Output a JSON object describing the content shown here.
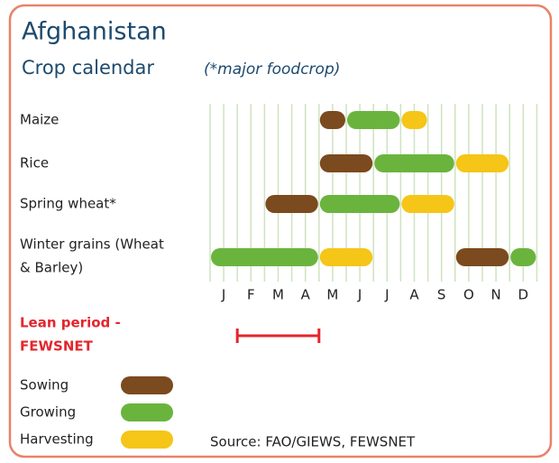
{
  "header": {
    "title": "Afghanistan",
    "subtitle": "Crop calendar",
    "note": "(*major foodcrop)"
  },
  "months": [
    "J",
    "F",
    "M",
    "A",
    "M",
    "J",
    "J",
    "A",
    "S",
    "O",
    "N",
    "D"
  ],
  "legend": [
    {
      "label": "Sowing",
      "color": "#7b4a1e"
    },
    {
      "label": "Growing",
      "color": "#6ab43e"
    },
    {
      "label": "Harvesting",
      "color": "#f5c518"
    }
  ],
  "crops": [
    {
      "label_lines": [
        "Maize"
      ],
      "phases": [
        {
          "phase": "Sowing",
          "start": 4,
          "end": 5
        },
        {
          "phase": "Growing",
          "start": 5,
          "end": 7
        },
        {
          "phase": "Harvesting",
          "start": 7,
          "end": 8
        }
      ]
    },
    {
      "label_lines": [
        "Rice"
      ],
      "phases": [
        {
          "phase": "Sowing",
          "start": 4,
          "end": 6
        },
        {
          "phase": "Growing",
          "start": 6,
          "end": 9
        },
        {
          "phase": "Harvesting",
          "start": 9,
          "end": 11
        }
      ]
    },
    {
      "label_lines": [
        "Spring wheat*"
      ],
      "phases": [
        {
          "phase": "Sowing",
          "start": 2,
          "end": 4
        },
        {
          "phase": "Growing",
          "start": 4,
          "end": 7
        },
        {
          "phase": "Harvesting",
          "start": 7,
          "end": 9
        }
      ]
    },
    {
      "label_lines": [
        "Winter grains (Wheat",
        "& Barley)"
      ],
      "phases": [
        {
          "phase": "Growing",
          "start": 0,
          "end": 4
        },
        {
          "phase": "Harvesting",
          "start": 4,
          "end": 6
        },
        {
          "phase": "Sowing",
          "start": 9,
          "end": 11
        },
        {
          "phase": "Growing",
          "start": 11,
          "end": 12
        }
      ]
    }
  ],
  "lean_period": {
    "label_lines": [
      "Lean period -",
      "FEWSNET"
    ],
    "start": 1,
    "end": 4
  },
  "source": "Source: FAO/GIEWS, FEWSNET"
}
